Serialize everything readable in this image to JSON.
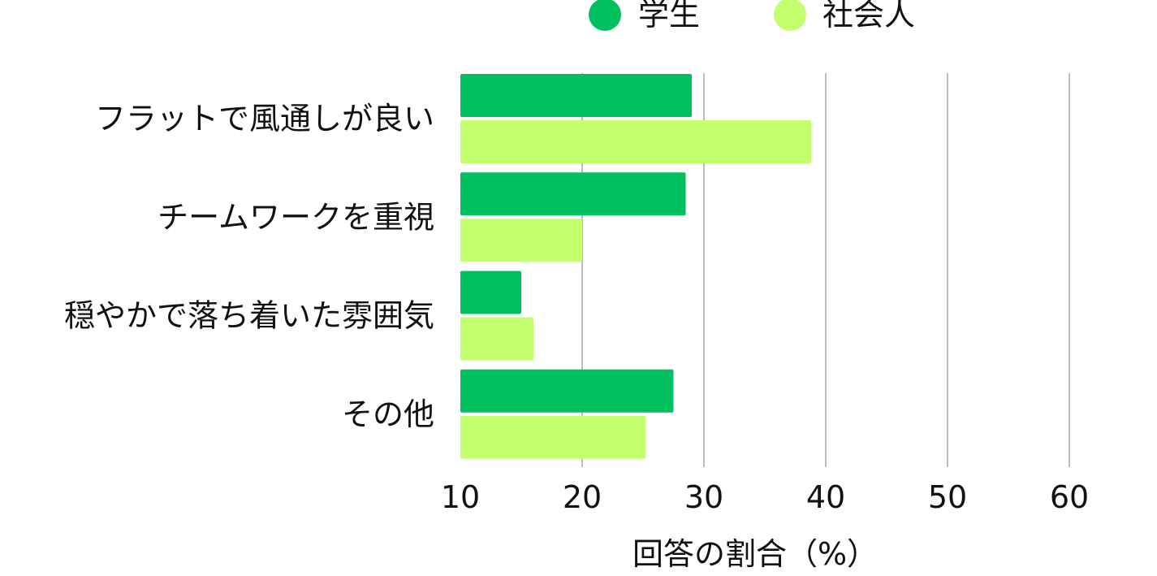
{
  "chart_data": {
    "type": "bar",
    "orientation": "horizontal",
    "categories": [
      "フラットで風通しが良い",
      "チームワークを重視",
      "穏やかで落ち着いた雰囲気",
      "その他"
    ],
    "series": [
      {
        "name": "学生",
        "color": "#00c060",
        "values": [
          29,
          28.5,
          15,
          27.5
        ]
      },
      {
        "name": "社会人",
        "color": "#c2ff6e",
        "values": [
          38.8,
          20,
          16,
          25.2
        ]
      }
    ],
    "xlabel": "回答の割合（%）",
    "ylabel": "",
    "xlim": [
      10,
      60
    ],
    "xticks": [
      "10",
      "20",
      "30",
      "40",
      "50",
      "60"
    ],
    "grid": "vertical",
    "legend_position": "top"
  }
}
